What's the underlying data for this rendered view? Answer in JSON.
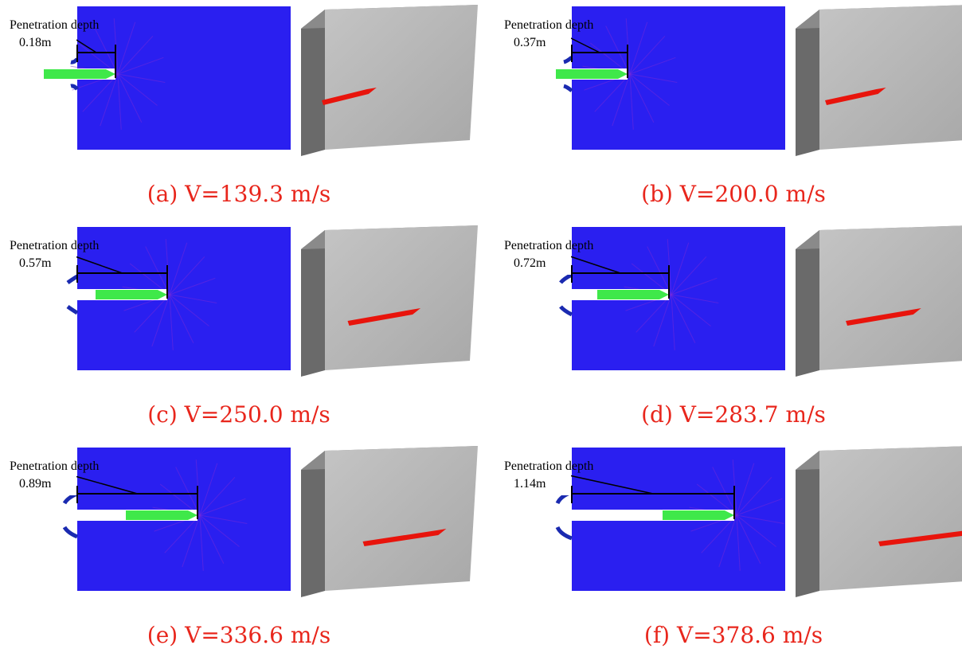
{
  "panels": [
    {
      "label": "Penetration depth",
      "depth": "0.18m",
      "caption": "(a) V=139.3 m/s"
    },
    {
      "label": "Penetration depth",
      "depth": "0.37m",
      "caption": "(b) V=200.0 m/s"
    },
    {
      "label": "Penetration depth",
      "depth": "0.57m",
      "caption": "(c) V=250.0 m/s"
    },
    {
      "label": "Penetration depth",
      "depth": "0.72m",
      "caption": "(d) V=283.7 m/s"
    },
    {
      "label": "Penetration depth",
      "depth": "0.89m",
      "caption": "(e) V=336.6 m/s"
    },
    {
      "label": "Penetration depth",
      "depth": "1.14m",
      "caption": "(f) V=378.6 m/s"
    }
  ]
}
